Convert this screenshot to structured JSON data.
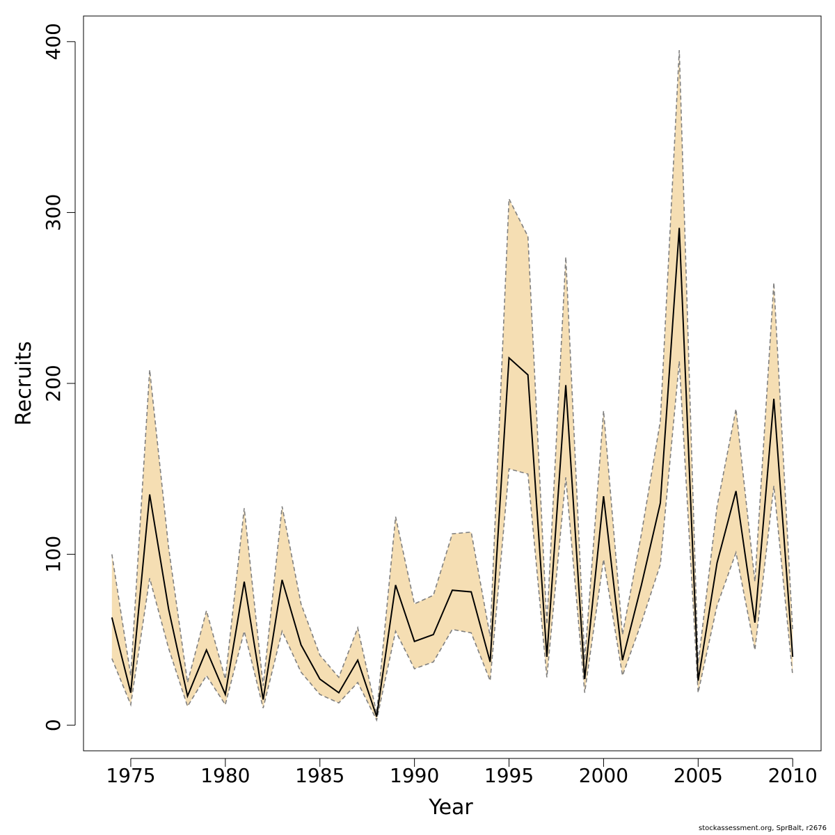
{
  "chart_data": {
    "type": "line",
    "xlabel": "Year",
    "ylabel": "Recruits",
    "xlim": [
      1972.5,
      2011.5
    ],
    "ylim": [
      -15,
      415
    ],
    "xticks": [
      1975,
      1980,
      1985,
      1990,
      1995,
      2000,
      2005,
      2010
    ],
    "yticks": [
      0,
      100,
      200,
      300,
      400
    ],
    "grid": false,
    "x": [
      1974,
      1975,
      1976,
      1977,
      1978,
      1979,
      1980,
      1981,
      1982,
      1983,
      1984,
      1985,
      1986,
      1987,
      1988,
      1989,
      1990,
      1991,
      1992,
      1993,
      1994,
      1995,
      1996,
      1997,
      1998,
      1999,
      2000,
      2001,
      2002,
      2003,
      2004,
      2005,
      2006,
      2007,
      2008,
      2009,
      2010
    ],
    "series": [
      {
        "values": [
          63,
          19,
          135,
          68,
          17,
          44,
          18,
          84,
          15,
          85,
          47,
          27,
          19,
          38,
          5,
          82,
          49,
          53,
          79,
          78,
          37,
          215,
          205,
          40,
          199,
          27,
          134,
          38,
          82,
          130,
          291,
          26,
          95,
          137,
          60,
          191,
          40
        ],
        "lower": [
          39,
          12,
          86,
          45,
          11,
          29,
          12,
          55,
          10,
          55,
          31,
          18,
          13,
          25,
          3,
          55,
          33,
          37,
          56,
          54,
          26,
          150,
          147,
          28,
          145,
          19,
          97,
          29,
          60,
          94,
          213,
          19,
          70,
          101,
          44,
          140,
          29
        ],
        "upper": [
          100,
          29,
          208,
          104,
          25,
          67,
          27,
          127,
          23,
          128,
          71,
          41,
          28,
          57,
          7,
          122,
          71,
          76,
          112,
          113,
          52,
          308,
          286,
          59,
          274,
          38,
          184,
          53,
          112,
          178,
          395,
          36,
          128,
          185,
          84,
          259,
          55
        ]
      }
    ],
    "colors": {
      "band": "#f5deb3",
      "bound_line": "#7f7f7f",
      "line": "#000000",
      "axis": "#000000"
    }
  },
  "footer": {
    "credit": "stockassessment.org, SprBalt, r2676"
  }
}
